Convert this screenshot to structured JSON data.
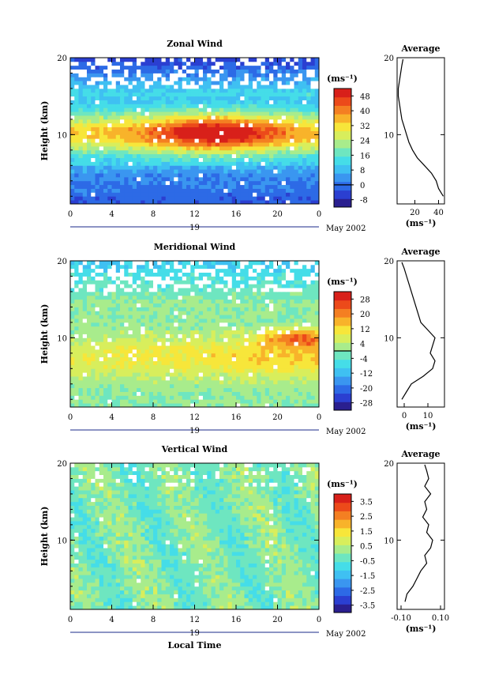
{
  "figure": {
    "date_label": "May 2002",
    "xlabel_bottom": "Local Time",
    "colors": [
      "#2a1f8f",
      "#2b3fd1",
      "#2d6ae6",
      "#3a96f0",
      "#3fc0f2",
      "#45dde8",
      "#6ee6c0",
      "#a8ec8c",
      "#d8ee5c",
      "#f7e63a",
      "#f8b32a",
      "#f47f22",
      "#ec4a1a",
      "#d8201a"
    ]
  },
  "chart_data": [
    {
      "type": "heatmap",
      "title": "Zonal Wind",
      "ylabel": "Height (km)",
      "x_ticks": [
        "0",
        "4",
        "8",
        "12",
        "16",
        "20",
        "0"
      ],
      "date_marker": "19",
      "xlim": [
        0,
        24
      ],
      "ylim": [
        1,
        20
      ],
      "y_ticks": [
        20,
        10
      ],
      "colorbar_unit": "(ms⁻¹)",
      "colorbar_levels": [
        -8,
        0,
        8,
        16,
        24,
        32,
        40,
        48
      ],
      "colorbar_range": [
        -12,
        52
      ],
      "colorbar_zero": 0,
      "profile": {
        "title": "Average",
        "x_ticks": [
          20,
          40
        ],
        "xlim": [
          5,
          45
        ],
        "xlabel": "(ms⁻¹)",
        "y_ticks": [
          20,
          10
        ],
        "points": [
          [
            44,
            2
          ],
          [
            42,
            2.5
          ],
          [
            40,
            3
          ],
          [
            38,
            4
          ],
          [
            34,
            5
          ],
          [
            28,
            6
          ],
          [
            22,
            7
          ],
          [
            18,
            8
          ],
          [
            15,
            9
          ],
          [
            13,
            10
          ],
          [
            11,
            11
          ],
          [
            9,
            12
          ],
          [
            8,
            13
          ],
          [
            7,
            14
          ],
          [
            6,
            15
          ],
          [
            6,
            16
          ],
          [
            7,
            17
          ],
          [
            8,
            18
          ],
          [
            9,
            19
          ],
          [
            10,
            19.8
          ]
        ]
      }
    },
    {
      "type": "heatmap",
      "title": "Meridional Wind",
      "ylabel": "Height (km)",
      "x_ticks": [
        "0",
        "4",
        "8",
        "12",
        "16",
        "20",
        "0"
      ],
      "date_marker": "19",
      "xlim": [
        0,
        24
      ],
      "ylim": [
        1,
        20
      ],
      "y_ticks": [
        20,
        10
      ],
      "colorbar_unit": "(ms⁻¹)",
      "colorbar_levels": [
        -28,
        -20,
        -12,
        -4,
        4,
        12,
        20,
        28
      ],
      "colorbar_range": [
        -32,
        32
      ],
      "colorbar_zero": 0,
      "profile": {
        "title": "Average",
        "x_ticks": [
          0,
          10
        ],
        "xlim": [
          -3,
          17
        ],
        "xlabel": "(ms⁻¹)",
        "y_ticks": [
          20,
          10
        ],
        "points": [
          [
            -1,
            2
          ],
          [
            1,
            3
          ],
          [
            3,
            4
          ],
          [
            8,
            5
          ],
          [
            12,
            6
          ],
          [
            13,
            7
          ],
          [
            11,
            8
          ],
          [
            12,
            9
          ],
          [
            13,
            10
          ],
          [
            10,
            11
          ],
          [
            7,
            12
          ],
          [
            6,
            13
          ],
          [
            5,
            14
          ],
          [
            4,
            15
          ],
          [
            3,
            16
          ],
          [
            2,
            17
          ],
          [
            1,
            18
          ],
          [
            0,
            19
          ],
          [
            -1,
            19.8
          ]
        ]
      }
    },
    {
      "type": "heatmap",
      "title": "Vertical Wind",
      "ylabel": "Height (km)",
      "x_ticks": [
        "0",
        "4",
        "8",
        "12",
        "16",
        "20",
        "0"
      ],
      "date_marker": "19",
      "xlabel": "Local Time",
      "xlim": [
        0,
        24
      ],
      "ylim": [
        1,
        20
      ],
      "y_ticks": [
        20,
        10
      ],
      "colorbar_unit": "(ms⁻¹)",
      "colorbar_levels": [
        -3.5,
        -2.5,
        -1.5,
        -0.5,
        0.5,
        1.5,
        2.5,
        3.5
      ],
      "colorbar_range": [
        -4,
        4
      ],
      "colorbar_zero": null,
      "profile": {
        "title": "Average",
        "x_ticks": [
          "-0.10",
          "0.10"
        ],
        "xlim": [
          -0.12,
          0.12
        ],
        "xlabel": "(ms⁻¹)",
        "y_ticks": [
          20,
          10
        ],
        "points": [
          [
            -0.08,
            2
          ],
          [
            -0.07,
            3
          ],
          [
            -0.04,
            4
          ],
          [
            -0.02,
            5
          ],
          [
            0.0,
            6
          ],
          [
            0.03,
            7
          ],
          [
            0.02,
            8
          ],
          [
            0.05,
            9
          ],
          [
            0.06,
            10
          ],
          [
            0.03,
            11
          ],
          [
            0.04,
            12
          ],
          [
            0.01,
            13
          ],
          [
            0.03,
            14
          ],
          [
            0.02,
            15
          ],
          [
            0.05,
            16
          ],
          [
            0.02,
            17
          ],
          [
            0.04,
            18
          ],
          [
            0.03,
            19
          ],
          [
            0.02,
            19.8
          ]
        ]
      }
    }
  ]
}
